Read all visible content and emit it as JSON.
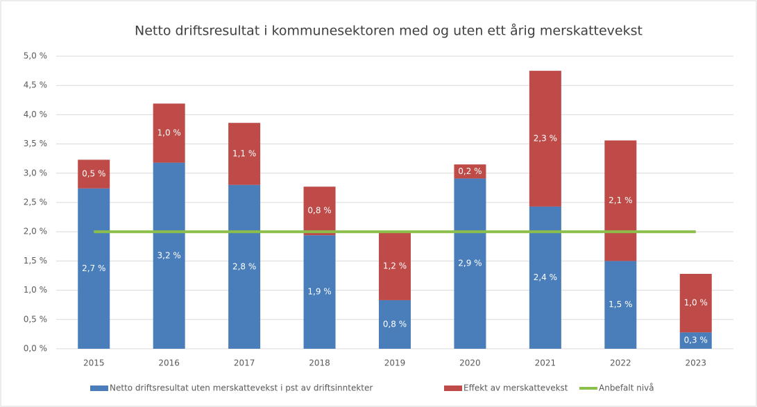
{
  "chart_data": {
    "type": "bar",
    "stacked": true,
    "title": "Netto driftsresultat i kommunesektoren med og uten ett årig merskattevekst",
    "categories": [
      "2015",
      "2016",
      "2017",
      "2018",
      "2019",
      "2020",
      "2021",
      "2022",
      "2023"
    ],
    "series": [
      {
        "name": "Netto driftsresultat uten merskattevekst i pst av driftsinntekter",
        "color": "#4a7ebb",
        "values": [
          2.74,
          3.18,
          2.8,
          1.94,
          0.83,
          2.91,
          2.43,
          1.5,
          0.28
        ],
        "value_labels": [
          "2,7 %",
          "3,2 %",
          "2,8 %",
          "1,9 %",
          "0,8 %",
          "2,9 %",
          "2,4 %",
          "1,5 %",
          "0,3 %"
        ]
      },
      {
        "name": "Effekt av merskattevekst",
        "color": "#be4b48",
        "values": [
          0.49,
          1.01,
          1.06,
          0.83,
          1.16,
          0.24,
          2.32,
          2.06,
          1.0
        ],
        "value_labels": [
          "0,5 %",
          "1,0 %",
          "1,1 %",
          "0,8 %",
          "1,2 %",
          "0,2 %",
          "2,3 %",
          "2,1 %",
          "1,0 %"
        ]
      },
      {
        "name": "Anbefalt nivå",
        "color": "#8cbf4a",
        "type": "line",
        "values": [
          2.0,
          2.0,
          2.0,
          2.0,
          2.0,
          2.0,
          2.0,
          2.0,
          2.0
        ]
      }
    ],
    "ylim": [
      0,
      5
    ],
    "yticks": [
      {
        "value": 0,
        "label": "0,0 %"
      },
      {
        "value": 0.5,
        "label": "0,5 %"
      },
      {
        "value": 1,
        "label": "1,0 %"
      },
      {
        "value": 1.5,
        "label": "1,5 %"
      },
      {
        "value": 2,
        "label": "2,0 %"
      },
      {
        "value": 2.5,
        "label": "2,5 %"
      },
      {
        "value": 3,
        "label": "3,0 %"
      },
      {
        "value": 3.5,
        "label": "3,5 %"
      },
      {
        "value": 4,
        "label": "4,0 %"
      },
      {
        "value": 4.5,
        "label": "4,5 %"
      },
      {
        "value": 5,
        "label": "5,0 %"
      }
    ],
    "grid": true,
    "legend": "bottom"
  }
}
